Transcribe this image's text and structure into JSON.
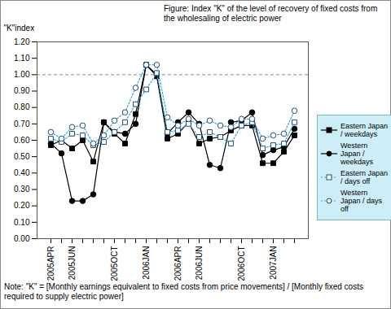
{
  "chart_data": {
    "type": "line",
    "title": "Figure: Index \"K\" of the level of recovery of fixed costs from the wholesaling of electric power",
    "y_label": "\"K\"index",
    "note": "Note: \"K\" = [Monthly earnings equivalent to fixed costs from price movements] / [Monthly fixed costs required to supply electric power]",
    "categories": [
      "2005APR",
      null,
      "2005JUN",
      null,
      null,
      null,
      "2005OCT",
      null,
      null,
      "2006JAN",
      null,
      null,
      "2006APR",
      null,
      "2006JUN",
      null,
      null,
      null,
      "2006OCT",
      null,
      null,
      "2007JAN",
      null,
      null
    ],
    "series": [
      {
        "name": "Eastern Japan / weekdays",
        "color": "#000000",
        "marker": "filled-square",
        "line_style": "solid",
        "values": [
          0.57,
          0.6,
          0.55,
          0.6,
          0.47,
          0.71,
          0.64,
          0.58,
          0.76,
          1.06,
          0.99,
          0.61,
          0.64,
          0.71,
          0.58,
          0.61,
          0.62,
          0.66,
          0.69,
          0.69,
          0.46,
          0.46,
          0.53,
          0.63
        ]
      },
      {
        "name": "Western Japan / weekdays",
        "color": "#000000",
        "marker": "filled-circle",
        "line_style": "solid",
        "values": [
          0.58,
          0.52,
          0.23,
          0.23,
          0.27,
          0.71,
          0.65,
          0.64,
          0.7,
          1.06,
          1.0,
          0.64,
          0.71,
          0.77,
          0.7,
          0.45,
          0.43,
          0.71,
          0.72,
          0.77,
          0.51,
          0.54,
          0.56,
          0.67
        ]
      },
      {
        "name": "Eastern Japan / days off",
        "color": "#3aa6d0",
        "marker": "open-square",
        "line_style": "dotted",
        "values": [
          0.61,
          0.59,
          0.64,
          0.63,
          0.57,
          0.59,
          0.65,
          0.71,
          0.82,
          0.91,
          1.01,
          0.65,
          0.66,
          0.7,
          0.62,
          0.65,
          0.62,
          0.58,
          0.69,
          0.71,
          0.55,
          0.57,
          0.58,
          0.71
        ]
      },
      {
        "name": "Western Japan / days off",
        "color": "#3aa6d0",
        "marker": "open-circle",
        "line_style": "dotted",
        "values": [
          0.65,
          0.61,
          0.68,
          0.69,
          0.58,
          0.63,
          0.72,
          0.77,
          0.92,
          1.06,
          1.06,
          0.74,
          0.69,
          0.73,
          0.69,
          0.72,
          0.69,
          0.68,
          0.73,
          0.73,
          0.61,
          0.63,
          0.64,
          0.78
        ]
      }
    ],
    "reference_line": 1.0,
    "ylim": [
      0,
      1.2
    ],
    "yticks": [
      {
        "value": 0,
        "label": "0.00"
      },
      {
        "value": 0.1,
        "label": "0.10"
      },
      {
        "value": 0.2,
        "label": "0.20"
      },
      {
        "value": 0.3,
        "label": "0.30"
      },
      {
        "value": 0.4,
        "label": "0.40"
      },
      {
        "value": 0.5,
        "label": "0.50"
      },
      {
        "value": 0.6,
        "label": "0.60"
      },
      {
        "value": 0.7,
        "label": "0.70"
      },
      {
        "value": 0.8,
        "label": "0.80"
      },
      {
        "value": 0.9,
        "label": "0.90"
      },
      {
        "value": 1.0,
        "label": "1.00"
      },
      {
        "value": 1.1,
        "label": "1.10"
      },
      {
        "value": 1.2,
        "label": "1.20"
      }
    ],
    "grid": false,
    "legend": "right"
  }
}
